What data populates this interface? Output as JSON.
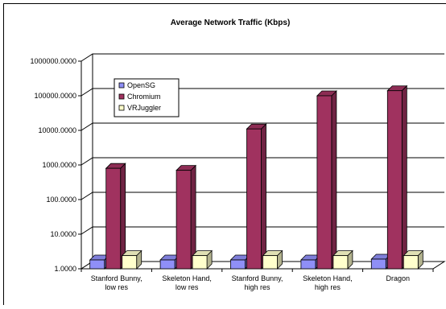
{
  "chart_data": {
    "type": "bar",
    "title": "Average Network Traffic (Kbps)",
    "xlabel": "",
    "ylabel": "",
    "y_scale": "log",
    "ylim": [
      1,
      1000000
    ],
    "grid": true,
    "legend_position": "upper-left inside plot",
    "y_tick_labels": [
      "1.0000",
      "10.0000",
      "100.0000",
      "1000.0000",
      "10000.0000",
      "100000.0000",
      "1000000.0000"
    ],
    "categories": [
      [
        "Stanford Bunny,",
        "low res"
      ],
      [
        "Skeleton Hand,",
        "low res"
      ],
      [
        "Stanford Bunny,",
        "high res"
      ],
      [
        "Skeleton Hand,",
        "high res"
      ],
      [
        "Dragon"
      ]
    ],
    "series": [
      {
        "name": "OpenSG",
        "color": "#8F8FF7",
        "values": [
          1.8,
          1.8,
          1.8,
          1.8,
          1.9
        ]
      },
      {
        "name": "Chromium",
        "color": "#A0325F",
        "values": [
          800,
          700,
          11000,
          100000,
          140000
        ]
      },
      {
        "name": "VRJuggler",
        "color": "#FFFFCC",
        "values": [
          2.4,
          2.4,
          2.4,
          2.4,
          2.4
        ]
      }
    ]
  }
}
